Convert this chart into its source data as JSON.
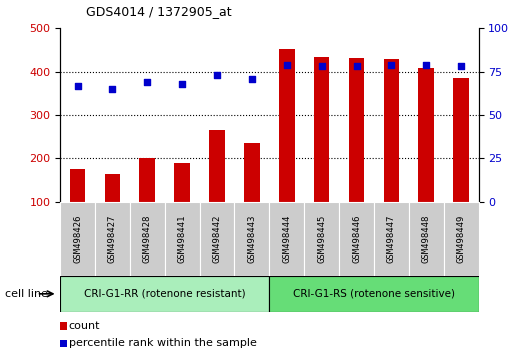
{
  "title": "GDS4014 / 1372905_at",
  "samples": [
    "GSM498426",
    "GSM498427",
    "GSM498428",
    "GSM498441",
    "GSM498442",
    "GSM498443",
    "GSM498444",
    "GSM498445",
    "GSM498446",
    "GSM498447",
    "GSM498448",
    "GSM498449"
  ],
  "counts": [
    175,
    163,
    201,
    190,
    265,
    235,
    452,
    435,
    432,
    430,
    408,
    385
  ],
  "percentile_ranks": [
    67,
    65,
    69,
    68,
    73,
    71,
    79,
    78,
    78,
    79,
    79,
    78
  ],
  "group1_label": "CRI-G1-RR (rotenone resistant)",
  "group2_label": "CRI-G1-RS (rotenone sensitive)",
  "group1_count": 6,
  "group2_count": 6,
  "bar_color": "#cc0000",
  "dot_color": "#0000cc",
  "group1_bg": "#aaeebb",
  "group2_bg": "#66dd77",
  "tick_bg": "#cccccc",
  "ylim_left": [
    100,
    500
  ],
  "ylim_right": [
    0,
    100
  ],
  "yticks_left": [
    100,
    200,
    300,
    400,
    500
  ],
  "yticks_right": [
    0,
    25,
    50,
    75,
    100
  ],
  "grid_lines": [
    200,
    300,
    400
  ],
  "legend_count_label": "count",
  "legend_pct_label": "percentile rank within the sample",
  "cell_line_label": "cell line",
  "bar_width": 0.45,
  "fig_width": 5.23,
  "fig_height": 3.54
}
